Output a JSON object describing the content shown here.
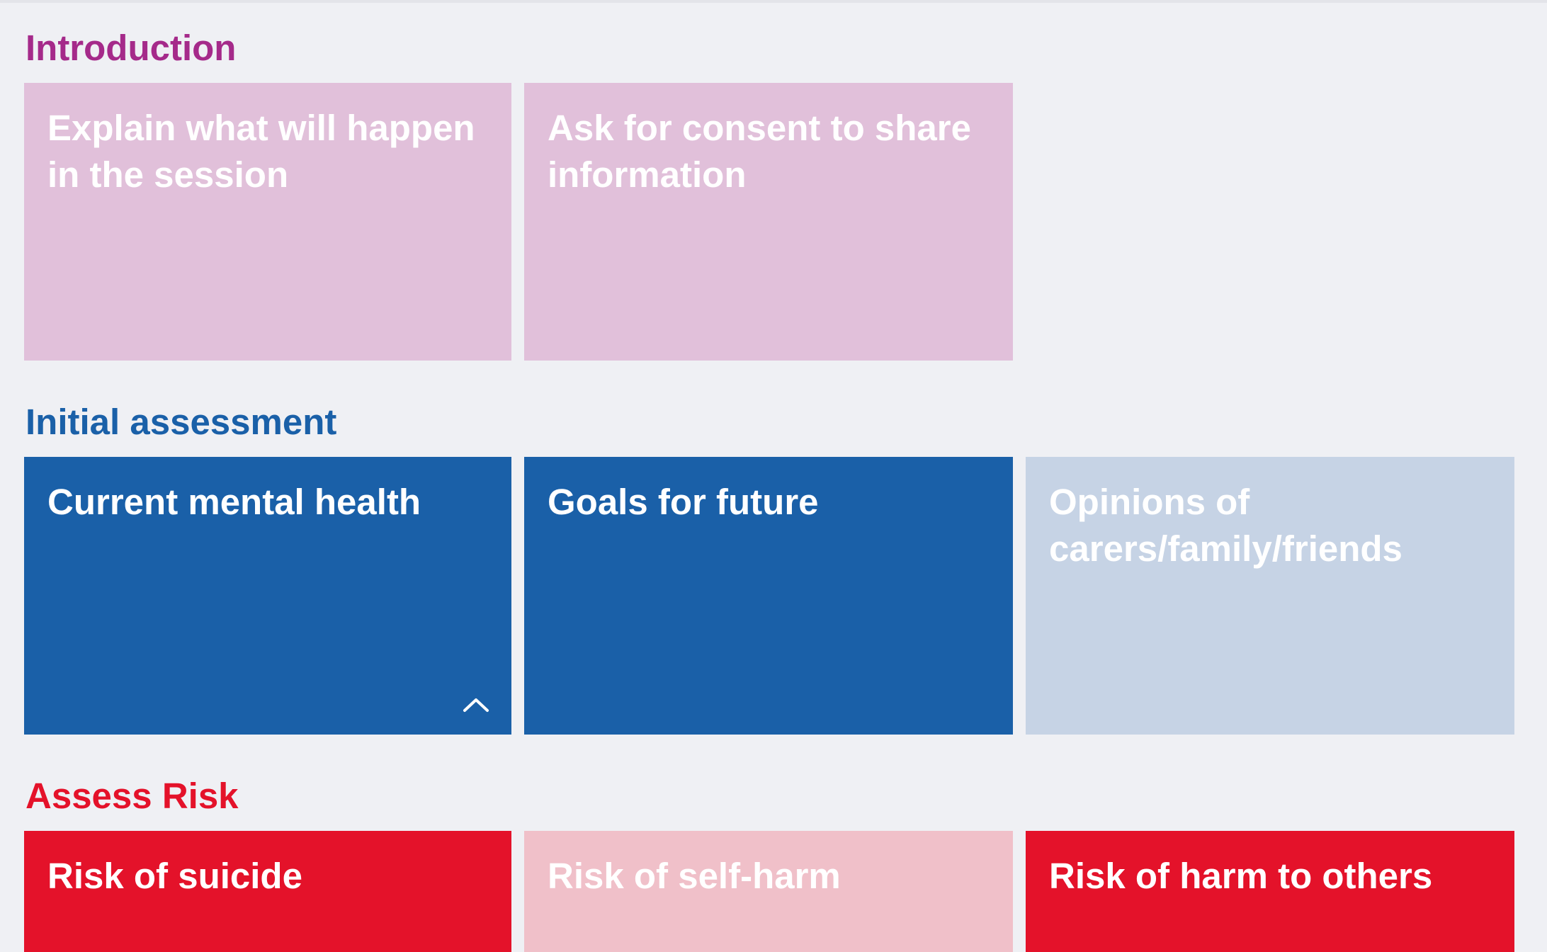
{
  "colors": {
    "background": "#eff0f4",
    "introduction_accent": "#a52a8a",
    "introduction_tile": "#e1c0da",
    "assessment_accent": "#1a60a8",
    "assessment_tile_active": "#1a60a8",
    "assessment_tile_inactive": "#c6d3e5",
    "risk_accent": "#e4122a",
    "risk_tile_active": "#e4122a",
    "risk_tile_inactive": "#f0c0c9",
    "tile_text": "#ffffff"
  },
  "sections": {
    "introduction": {
      "title": "Introduction",
      "tiles": [
        {
          "label": "Explain what will happen in the session",
          "state": "inactive"
        },
        {
          "label": "Ask for consent to share information",
          "state": "inactive"
        }
      ]
    },
    "initial_assessment": {
      "title": "Initial assessment",
      "tiles": [
        {
          "label": "Current mental health",
          "state": "active",
          "icon": "chevron-up-icon"
        },
        {
          "label": "Goals for future",
          "state": "active"
        },
        {
          "label": "Opinions of carers/family/friends",
          "state": "inactive"
        }
      ]
    },
    "assess_risk": {
      "title": "Assess Risk",
      "tiles": [
        {
          "label": "Risk of suicide",
          "state": "active"
        },
        {
          "label": "Risk of self-harm",
          "state": "inactive"
        },
        {
          "label": "Risk of harm to others",
          "state": "active"
        }
      ]
    }
  }
}
